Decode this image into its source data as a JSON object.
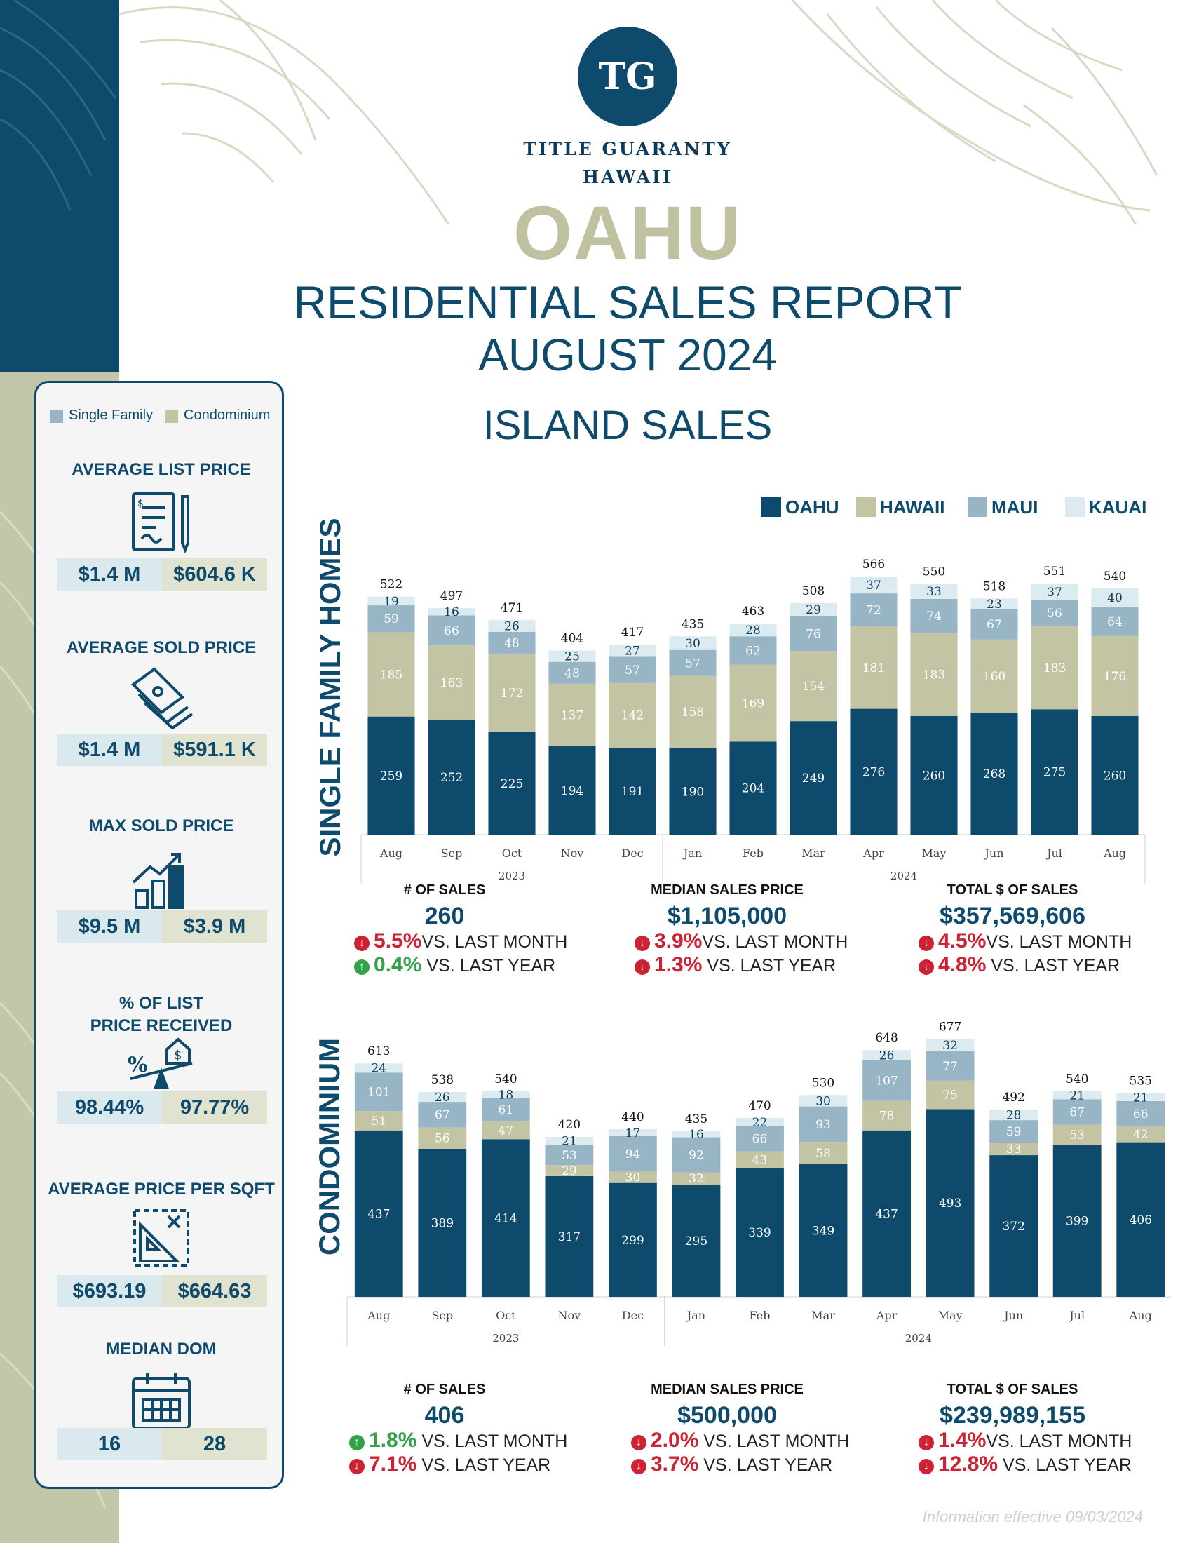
{
  "brand": {
    "logo_initials": "TG",
    "name_line1": "TITLE GUARANTY",
    "name_line2": "HAWAII"
  },
  "header": {
    "region": "OAHU",
    "title": "RESIDENTIAL SALES REPORT",
    "period": "AUGUST 2024",
    "section": "ISLAND SALES"
  },
  "colors": {
    "oahu": "#0e4a6b",
    "hawaii": "#c3c4a4",
    "maui": "#97b5c5",
    "kauai": "#dcebef",
    "down": "#cc2233",
    "up": "#33a04a"
  },
  "stats_panel": {
    "legend": {
      "single_family": "Single Family",
      "condominium": "Condominium"
    },
    "items": [
      {
        "title": "AVERAGE LIST PRICE",
        "icon": "contract-icon",
        "single_family": "$1.4 M",
        "condominium": "$604.6 K"
      },
      {
        "title": "AVERAGE SOLD PRICE",
        "icon": "money-stack-icon",
        "single_family": "$1.4 M",
        "condominium": "$591.1 K"
      },
      {
        "title": "MAX SOLD PRICE",
        "icon": "growth-chart-icon",
        "single_family": "$9.5 M",
        "condominium": "$3.9 M"
      },
      {
        "title": "% OF LIST\nPRICE RECEIVED",
        "icon": "percent-scale-icon",
        "single_family": "98.44%",
        "condominium": "97.77%"
      },
      {
        "title": "AVERAGE PRICE PER SQFT",
        "icon": "blueprint-icon",
        "single_family": "$693.19",
        "condominium": "$664.63"
      },
      {
        "title": "MEDIAN DOM",
        "icon": "calendar-icon",
        "single_family": "16",
        "condominium": "28"
      }
    ]
  },
  "chart_legend": [
    "OAHU",
    "HAWAII",
    "MAUI",
    "KAUAI"
  ],
  "chart_data": [
    {
      "type": "bar",
      "stacked": true,
      "title": "SINGLE FAMILY HOMES",
      "categories": [
        "Aug",
        "Sep",
        "Oct",
        "Nov",
        "Dec",
        "Jan",
        "Feb",
        "Mar",
        "Apr",
        "May",
        "Jun",
        "Jul",
        "Aug"
      ],
      "year_groups": [
        {
          "label": "2023",
          "count": 5
        },
        {
          "label": "2024",
          "count": 8
        }
      ],
      "series": [
        {
          "name": "OAHU",
          "values": [
            259,
            252,
            225,
            194,
            191,
            190,
            204,
            249,
            276,
            260,
            268,
            275,
            260
          ]
        },
        {
          "name": "HAWAII",
          "values": [
            185,
            163,
            172,
            137,
            142,
            158,
            169,
            154,
            181,
            183,
            160,
            183,
            176
          ]
        },
        {
          "name": "MAUI",
          "values": [
            59,
            66,
            48,
            48,
            57,
            57,
            62,
            76,
            72,
            74,
            67,
            56,
            64
          ]
        },
        {
          "name": "KAUAI",
          "values": [
            19,
            16,
            26,
            25,
            27,
            30,
            28,
            29,
            37,
            33,
            23,
            37,
            40
          ]
        }
      ],
      "totals": [
        522,
        497,
        471,
        404,
        417,
        435,
        463,
        508,
        566,
        550,
        518,
        551,
        540
      ],
      "ylim": [
        0,
        600
      ]
    },
    {
      "type": "bar",
      "stacked": true,
      "title": "CONDOMINIUM",
      "categories": [
        "Aug",
        "Sep",
        "Oct",
        "Nov",
        "Dec",
        "Jan",
        "Feb",
        "Mar",
        "Apr",
        "May",
        "Jun",
        "Jul",
        "Aug"
      ],
      "year_groups": [
        {
          "label": "2023",
          "count": 5
        },
        {
          "label": "2024",
          "count": 8
        }
      ],
      "series": [
        {
          "name": "OAHU",
          "values": [
            437,
            389,
            414,
            317,
            299,
            295,
            339,
            349,
            437,
            493,
            372,
            399,
            406
          ]
        },
        {
          "name": "HAWAII",
          "values": [
            51,
            56,
            47,
            29,
            30,
            32,
            43,
            58,
            78,
            75,
            33,
            53,
            42
          ]
        },
        {
          "name": "MAUI",
          "values": [
            101,
            67,
            61,
            53,
            94,
            92,
            66,
            93,
            107,
            77,
            59,
            67,
            66
          ]
        },
        {
          "name": "KAUAI",
          "values": [
            24,
            26,
            18,
            21,
            17,
            16,
            22,
            30,
            26,
            32,
            28,
            21,
            21
          ]
        }
      ],
      "totals": [
        613,
        538,
        540,
        420,
        440,
        435,
        470,
        530,
        648,
        677,
        492,
        540,
        535
      ],
      "ylim": [
        0,
        700
      ]
    }
  ],
  "kpis": {
    "single_family": [
      {
        "label": "# OF SALES",
        "value": "260",
        "month": {
          "pct": "5.5%",
          "dir": "down",
          "text": "VS. LAST MONTH"
        },
        "year": {
          "pct": "0.4%",
          "dir": "up",
          "text": "VS. LAST YEAR"
        }
      },
      {
        "label": "MEDIAN SALES PRICE",
        "value": "$1,105,000",
        "month": {
          "pct": "3.9%",
          "dir": "down",
          "text": "VS. LAST MONTH"
        },
        "year": {
          "pct": "1.3%",
          "dir": "down",
          "text": "VS. LAST YEAR"
        }
      },
      {
        "label": "TOTAL $ OF SALES",
        "value": "$357,569,606",
        "month": {
          "pct": "4.5%",
          "dir": "down",
          "text": "VS. LAST MONTH"
        },
        "year": {
          "pct": "4.8%",
          "dir": "down",
          "text": "VS. LAST YEAR"
        }
      }
    ],
    "condominium": [
      {
        "label": "# OF SALES",
        "value": "406",
        "month": {
          "pct": "1.8%",
          "dir": "up",
          "text": "VS. LAST MONTH"
        },
        "year": {
          "pct": "7.1%",
          "dir": "down",
          "text": "VS. LAST YEAR"
        }
      },
      {
        "label": "MEDIAN SALES PRICE",
        "value": "$500,000",
        "month": {
          "pct": "2.0%",
          "dir": "down",
          "text": "VS. LAST MONTH"
        },
        "year": {
          "pct": "3.7%",
          "dir": "down",
          "text": "VS. LAST YEAR"
        }
      },
      {
        "label": "TOTAL $ OF SALES",
        "value": "$239,989,155",
        "month": {
          "pct": "1.4%",
          "dir": "down",
          "text": "VS. LAST MONTH"
        },
        "year": {
          "pct": "12.8%",
          "dir": "down",
          "text": "VS. LAST YEAR"
        }
      }
    ]
  },
  "footnote": "Information effective 09/03/2024"
}
